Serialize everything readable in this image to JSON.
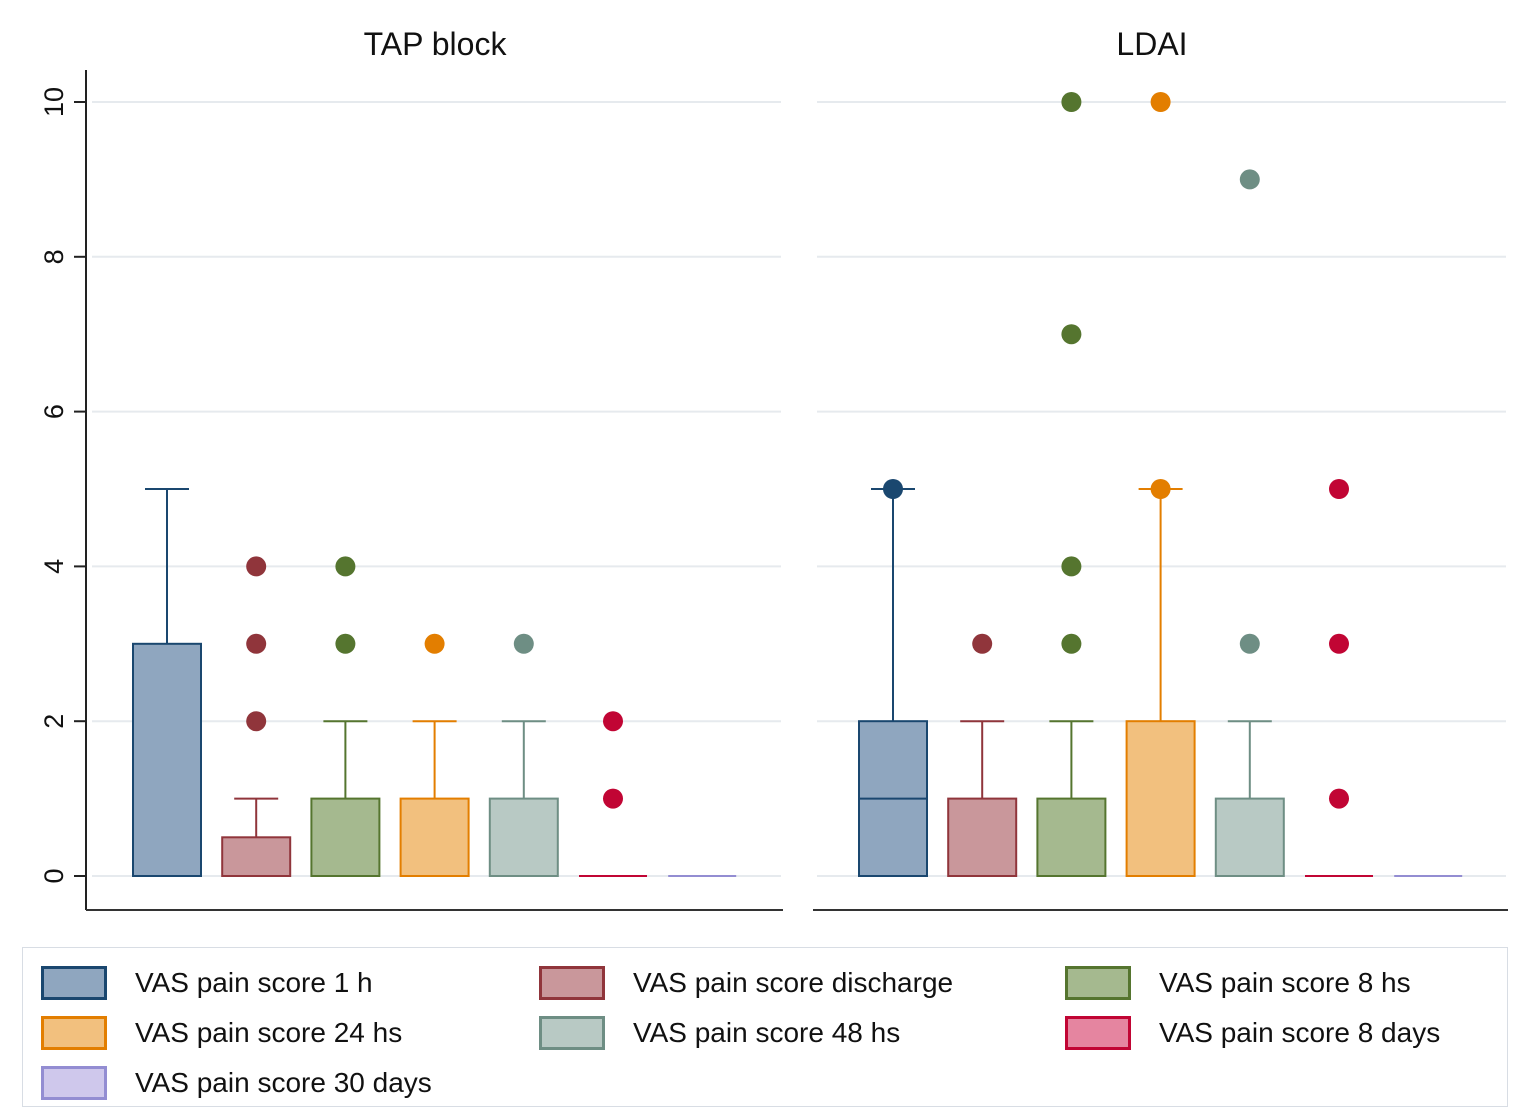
{
  "chart_data": {
    "type": "box",
    "panels": [
      {
        "title": "TAP block",
        "boxes": [
          {
            "series": "VAS pain score 1 h",
            "q1": 0,
            "median": 0,
            "q3": 3,
            "whisker_low": 0,
            "whisker_high": 5,
            "outliers": []
          },
          {
            "series": "VAS pain score discharge",
            "q1": 0,
            "median": 0,
            "q3": 0.5,
            "whisker_low": 0,
            "whisker_high": 1,
            "outliers": [
              2,
              3,
              4
            ]
          },
          {
            "series": "VAS pain score 8 hs",
            "q1": 0,
            "median": 0,
            "q3": 1,
            "whisker_low": 0,
            "whisker_high": 2,
            "outliers": [
              3,
              4
            ]
          },
          {
            "series": "VAS pain score 24 hs",
            "q1": 0,
            "median": 0,
            "q3": 1,
            "whisker_low": 0,
            "whisker_high": 2,
            "outliers": [
              3
            ]
          },
          {
            "series": "VAS pain score 48 hs",
            "q1": 0,
            "median": 0,
            "q3": 1,
            "whisker_low": 0,
            "whisker_high": 2,
            "outliers": [
              3
            ]
          },
          {
            "series": "VAS pain score 8 days",
            "q1": 0,
            "median": 0,
            "q3": 0,
            "whisker_low": 0,
            "whisker_high": 0,
            "outliers": [
              1,
              2
            ]
          },
          {
            "series": "VAS pain score 30 days",
            "q1": 0,
            "median": 0,
            "q3": 0,
            "whisker_low": 0,
            "whisker_high": 0,
            "outliers": []
          }
        ]
      },
      {
        "title": "LDAI",
        "boxes": [
          {
            "series": "VAS pain score 1 h",
            "q1": 0,
            "median": 1,
            "q3": 2,
            "whisker_low": 0,
            "whisker_high": 5,
            "outliers": [
              5
            ]
          },
          {
            "series": "VAS pain score discharge",
            "q1": 0,
            "median": 0,
            "q3": 1,
            "whisker_low": 0,
            "whisker_high": 2,
            "outliers": [
              3
            ]
          },
          {
            "series": "VAS pain score 8 hs",
            "q1": 0,
            "median": 0,
            "q3": 1,
            "whisker_low": 0,
            "whisker_high": 2,
            "outliers": [
              3,
              4,
              7,
              10
            ]
          },
          {
            "series": "VAS pain score 24 hs",
            "q1": 0,
            "median": 0,
            "q3": 2,
            "whisker_low": 0,
            "whisker_high": 5,
            "outliers": [
              5,
              10
            ]
          },
          {
            "series": "VAS pain score 48 hs",
            "q1": 0,
            "median": 0,
            "q3": 1,
            "whisker_low": 0,
            "whisker_high": 2,
            "outliers": [
              3,
              9
            ]
          },
          {
            "series": "VAS pain score 8 days",
            "q1": 0,
            "median": 0,
            "q3": 0,
            "whisker_low": 0,
            "whisker_high": 0,
            "outliers": [
              1,
              3,
              5
            ]
          },
          {
            "series": "VAS pain score 30 days",
            "q1": 0,
            "median": 0,
            "q3": 0,
            "whisker_low": 0,
            "whisker_high": 0,
            "outliers": []
          }
        ]
      }
    ],
    "series": [
      {
        "name": "VAS pain score 1 h",
        "fill": "#8fa6bf",
        "stroke": "#1a476f"
      },
      {
        "name": "VAS pain score discharge",
        "fill": "#c9979b",
        "stroke": "#90353b"
      },
      {
        "name": "VAS pain score 8 hs",
        "fill": "#a5b98f",
        "stroke": "#55752f"
      },
      {
        "name": "VAS pain score 24 hs",
        "fill": "#f2c07e",
        "stroke": "#e37e00"
      },
      {
        "name": "VAS pain score 48 hs",
        "fill": "#b8c9c4",
        "stroke": "#6e8e84"
      },
      {
        "name": "VAS pain score 8 days",
        "fill": "#e585a0",
        "stroke": "#c10534"
      },
      {
        "name": "VAS pain score 30 days",
        "fill": "#cfc8ec",
        "stroke": "#938dd2"
      }
    ],
    "ylim": [
      0,
      10
    ],
    "yticks": [
      "0",
      "2",
      "4",
      "6",
      "8",
      "10"
    ],
    "ylabel": "",
    "grid": true,
    "legend_position": "bottom"
  }
}
